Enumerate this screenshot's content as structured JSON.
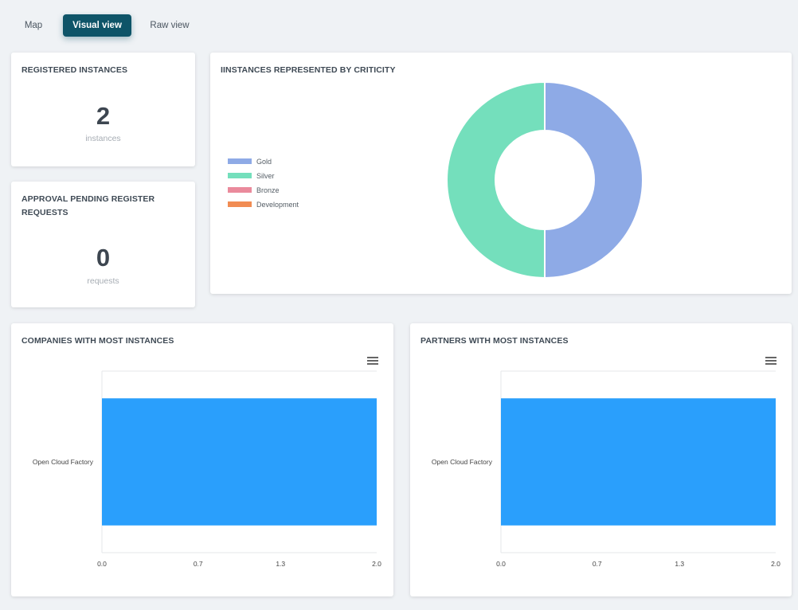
{
  "tabs": [
    {
      "label": "Map",
      "active": false
    },
    {
      "label": "Visual view",
      "active": true
    },
    {
      "label": "Raw view",
      "active": false
    }
  ],
  "registered": {
    "title": "REGISTERED INSTANCES",
    "value": "2",
    "unit": "instances"
  },
  "pending": {
    "title": "APPROVAL PENDING REGISTER REQUESTS",
    "value": "0",
    "unit": "requests"
  },
  "criticity": {
    "title": "IINSTANCES REPRESENTED BY CRITICITY"
  },
  "companies": {
    "title": "COMPANIES WITH MOST INSTANCES"
  },
  "partners": {
    "title": "PARTNERS WITH MOST INSTANCES"
  },
  "icons": {
    "chart_menu": "hamburger-menu-icon"
  },
  "colors": {
    "accent": "#0e5468",
    "bar": "#2a9ffc"
  },
  "chart_data": [
    {
      "type": "pie",
      "donut": true,
      "title": "IINSTANCES REPRESENTED BY CRITICITY",
      "legend": "left",
      "categories": [
        "Gold",
        "Silver",
        "Bronze",
        "Development"
      ],
      "values": [
        1,
        1,
        0,
        0
      ],
      "colors": [
        "#8eaae6",
        "#74dfbc",
        "#ea8a9c",
        "#f18c53"
      ]
    },
    {
      "type": "bar",
      "orientation": "horizontal",
      "title": "COMPANIES WITH MOST INSTANCES",
      "categories": [
        "Open Cloud Factory"
      ],
      "values": [
        2
      ],
      "xlim": [
        0,
        2
      ],
      "ticks": [
        "0.0",
        "0.7",
        "1.3",
        "2.0"
      ],
      "color": "#2a9ffc"
    },
    {
      "type": "bar",
      "orientation": "horizontal",
      "title": "PARTNERS WITH MOST INSTANCES",
      "categories": [
        "Open Cloud Factory"
      ],
      "values": [
        2
      ],
      "xlim": [
        0,
        2
      ],
      "ticks": [
        "0.0",
        "0.7",
        "1.3",
        "2.0"
      ],
      "color": "#2a9ffc"
    }
  ]
}
